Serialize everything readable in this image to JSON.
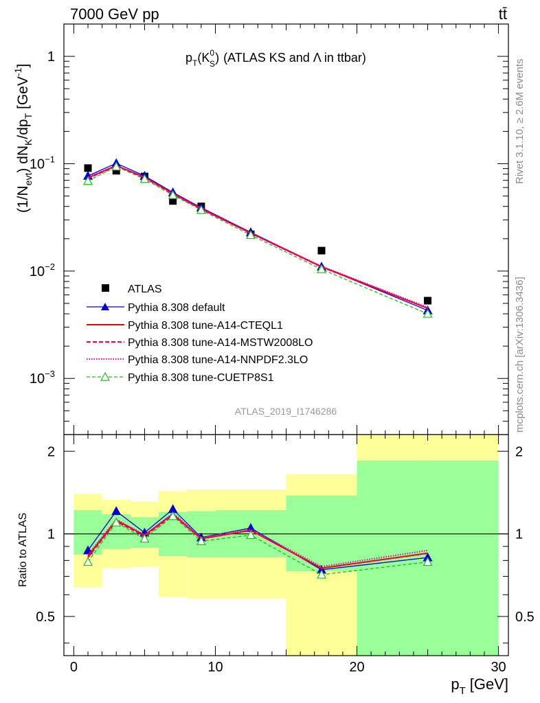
{
  "header": {
    "energy_label": "7000 GeV pp",
    "process_label": "tt̄"
  },
  "side_labels": {
    "rivet": "Rivet 3.1.10, ≥ 2.6M events",
    "mcplots": "mcplots.cern.ch [arXiv:1306.3436]"
  },
  "colors": {
    "atlas": "#000000",
    "default": "#0000cc",
    "cteql1": "#ee0000",
    "mstw": "#ee0044",
    "nnpdf": "#dd00aa",
    "cuetp8s1": "#22bb22",
    "band_inner": "#99ff99",
    "band_outer": "#ffff99"
  },
  "chart_data": [
    {
      "type": "line",
      "title_main": "p",
      "title_sub_T": "T",
      "title_k": "(K",
      "title_k_sup": "0",
      "title_k_sub": "S",
      "title_k_close": ")",
      "title_rest": "(ATLAS KS and Λ in ttbar)",
      "watermark": "ATLAS_2019_I1746286",
      "ylabel": "(1/N_evt) dN_K/dp_T [GeV^-1]",
      "yscale": "log",
      "ylim": [
        0.0003,
        2
      ],
      "yticks": [
        {
          "value": 1,
          "label": "1"
        },
        {
          "value": 0.1,
          "label": "10",
          "exp": "−1"
        },
        {
          "value": 0.01,
          "label": "10",
          "exp": "−2"
        },
        {
          "value": 0.001,
          "label": "10",
          "exp": "−3"
        }
      ],
      "xlim": [
        -0.7,
        30.7
      ],
      "x": [
        1,
        3,
        5,
        7,
        9,
        12.5,
        17.5,
        25
      ],
      "xerr": [
        [
          0,
          2
        ],
        [
          2,
          4
        ],
        [
          4,
          6
        ],
        [
          6,
          8
        ],
        [
          8,
          10
        ],
        [
          10,
          15
        ],
        [
          15,
          20
        ],
        [
          20,
          30
        ]
      ],
      "series": [
        {
          "name": "ATLAS",
          "key": "atlas",
          "style": "square",
          "values": [
            0.091,
            0.086,
            0.076,
            0.045,
            0.04,
            0.022,
            0.0155,
            0.0053
          ]
        },
        {
          "name": "Pythia 8.308 default",
          "key": "default",
          "style": "tri-filled",
          "values": [
            0.077,
            0.101,
            0.077,
            0.054,
            0.039,
            0.023,
            0.011,
            0.0043
          ]
        },
        {
          "name": "Pythia 8.308 tune-A14-CTEQL1",
          "key": "cteql1",
          "style": "solid",
          "values": [
            0.074,
            0.096,
            0.075,
            0.053,
            0.038,
            0.0226,
            0.011,
            0.0045
          ]
        },
        {
          "name": "Pythia 8.308 tune-A14-MSTW2008LO",
          "key": "mstw",
          "style": "dashed",
          "values": [
            0.073,
            0.095,
            0.074,
            0.052,
            0.038,
            0.0225,
            0.0109,
            0.0045
          ]
        },
        {
          "name": "Pythia 8.308 tune-A14-NNPDF2.3LO",
          "key": "nnpdf",
          "style": "dotted",
          "values": [
            0.075,
            0.096,
            0.075,
            0.053,
            0.039,
            0.0227,
            0.0111,
            0.0046
          ]
        },
        {
          "name": "Pythia 8.308 tune-CUETP8S1",
          "key": "cuetp8s1",
          "style": "tri-open-dashed",
          "values": [
            0.069,
            0.094,
            0.072,
            0.051,
            0.037,
            0.0216,
            0.0104,
            0.004
          ]
        }
      ],
      "legend_position": "lower-left"
    },
    {
      "type": "line",
      "ylabel": "Ratio to ATLAS",
      "yscale": "log",
      "ylim": [
        0.36,
        2.3
      ],
      "yticks": [
        {
          "value": 2,
          "label": "2"
        },
        {
          "value": 1,
          "label": "1"
        },
        {
          "value": 0.5,
          "label": "0.5"
        }
      ],
      "xlabel_main": "p",
      "xlabel_sub": "T",
      "xlabel_unit": "[GeV]",
      "xlim": [
        -0.7,
        30.7
      ],
      "xticks": [
        0,
        10,
        20,
        30
      ],
      "xtick_labels": [
        "0",
        "10",
        "20",
        "30"
      ],
      "bands": [
        {
          "x": [
            0,
            2
          ],
          "inner": [
            0.84,
            1.22
          ],
          "outer": [
            0.64,
            1.4
          ]
        },
        {
          "x": [
            2,
            4
          ],
          "inner": [
            0.88,
            1.18
          ],
          "outer": [
            0.75,
            1.33
          ]
        },
        {
          "x": [
            4,
            6
          ],
          "inner": [
            0.89,
            1.15
          ],
          "outer": [
            0.76,
            1.31
          ]
        },
        {
          "x": [
            6,
            8
          ],
          "inner": [
            0.83,
            1.2
          ],
          "outer": [
            0.59,
            1.43
          ]
        },
        {
          "x": [
            8,
            10
          ],
          "inner": [
            0.82,
            1.21
          ],
          "outer": [
            0.58,
            1.45
          ]
        },
        {
          "x": [
            10,
            15
          ],
          "inner": [
            0.82,
            1.22
          ],
          "outer": [
            0.58,
            1.45
          ]
        },
        {
          "x": [
            15,
            20
          ],
          "inner": [
            0.73,
            1.38
          ],
          "outer": [
            0.33,
            1.65
          ]
        },
        {
          "x": [
            20,
            30
          ],
          "inner": [
            0.33,
            1.85
          ],
          "outer": [
            0.33,
            2.35
          ]
        }
      ],
      "series": [
        {
          "key": "default",
          "style": "tri-filled",
          "values": [
            0.87,
            1.21,
            1.01,
            1.23,
            0.97,
            1.05,
            0.74,
            0.82
          ]
        },
        {
          "key": "cteql1",
          "style": "solid",
          "values": [
            0.83,
            1.12,
            0.99,
            1.18,
            0.96,
            1.03,
            0.75,
            0.85
          ]
        },
        {
          "key": "mstw",
          "style": "dashed",
          "values": [
            0.82,
            1.11,
            0.98,
            1.17,
            0.96,
            1.03,
            0.75,
            0.85
          ]
        },
        {
          "key": "nnpdf",
          "style": "dotted",
          "values": [
            0.84,
            1.13,
            0.99,
            1.19,
            0.97,
            1.04,
            0.76,
            0.87
          ]
        },
        {
          "key": "cuetp8s1",
          "style": "tri-open-dashed",
          "values": [
            0.79,
            1.1,
            0.96,
            1.16,
            0.94,
            0.99,
            0.71,
            0.79
          ]
        }
      ]
    }
  ]
}
